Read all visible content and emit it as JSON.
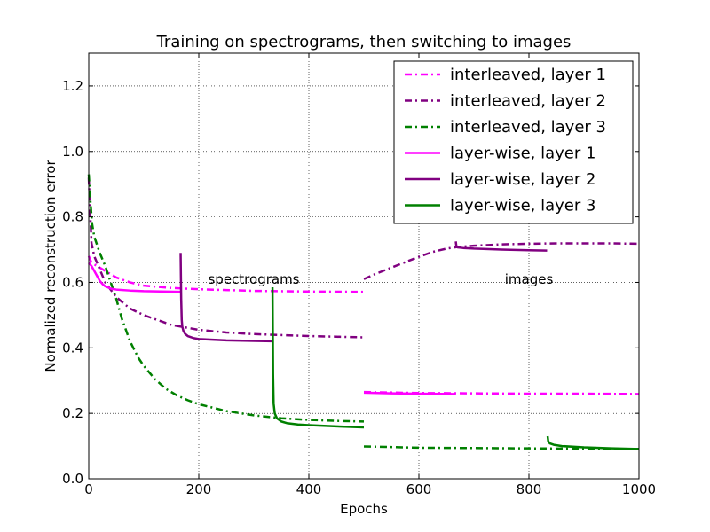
{
  "chart_data": {
    "type": "line",
    "title": "Training  on spectrograms, then switching to images",
    "xlabel": "Epochs",
    "ylabel": "Normalized reconstruction error",
    "xlim": [
      0,
      1000
    ],
    "ylim": [
      0.0,
      1.3
    ],
    "xticks": [
      0,
      200,
      400,
      600,
      800,
      1000
    ],
    "xtick_labels": [
      "0",
      "200",
      "400",
      "600",
      "800",
      "1000"
    ],
    "yticks": [
      0.0,
      0.2,
      0.4,
      0.6,
      0.8,
      1.0,
      1.2
    ],
    "ytick_labels": [
      "0.0",
      "0.2",
      "0.4",
      "0.6",
      "0.8",
      "1.0",
      "1.2"
    ],
    "grid": true,
    "legend_position": "top-right",
    "annotations": [
      {
        "text": "spectrograms",
        "x": 300,
        "y": 0.61
      },
      {
        "text": "images",
        "x": 800,
        "y": 0.61
      }
    ],
    "series": [
      {
        "name": "interleaved, layer 1",
        "color": "#ff00ff",
        "style": "dashdot",
        "segments": [
          [
            [
              0,
              0.68
            ],
            [
              5,
              0.66
            ],
            [
              10,
              0.655
            ],
            [
              20,
              0.645
            ],
            [
              30,
              0.635
            ],
            [
              50,
              0.615
            ],
            [
              75,
              0.6
            ],
            [
              100,
              0.59
            ],
            [
              150,
              0.583
            ],
            [
              200,
              0.579
            ],
            [
              300,
              0.574
            ],
            [
              400,
              0.572
            ],
            [
              500,
              0.571
            ]
          ],
          [
            [
              500,
              0.265
            ],
            [
              600,
              0.262
            ],
            [
              700,
              0.261
            ],
            [
              800,
              0.26
            ],
            [
              900,
              0.26
            ],
            [
              1000,
              0.259
            ]
          ]
        ]
      },
      {
        "name": "interleaved, layer 2",
        "color": "#800080",
        "style": "dashdot",
        "segments": [
          [
            [
              0,
              0.92
            ],
            [
              5,
              0.72
            ],
            [
              10,
              0.68
            ],
            [
              20,
              0.64
            ],
            [
              30,
              0.6
            ],
            [
              50,
              0.555
            ],
            [
              75,
              0.52
            ],
            [
              100,
              0.5
            ],
            [
              150,
              0.47
            ],
            [
              200,
              0.455
            ],
            [
              250,
              0.447
            ],
            [
              300,
              0.442
            ],
            [
              350,
              0.439
            ],
            [
              400,
              0.436
            ],
            [
              450,
              0.434
            ],
            [
              500,
              0.432
            ]
          ],
          [
            [
              500,
              0.61
            ],
            [
              520,
              0.625
            ],
            [
              550,
              0.645
            ],
            [
              580,
              0.665
            ],
            [
              600,
              0.678
            ],
            [
              625,
              0.693
            ],
            [
              650,
              0.703
            ],
            [
              670,
              0.708
            ],
            [
              700,
              0.712
            ],
            [
              750,
              0.716
            ],
            [
              800,
              0.718
            ],
            [
              850,
              0.719
            ],
            [
              900,
              0.719
            ],
            [
              950,
              0.719
            ],
            [
              1000,
              0.718
            ]
          ]
        ]
      },
      {
        "name": "interleaved, layer 3",
        "color": "#008000",
        "style": "dashdot",
        "segments": [
          [
            [
              0,
              0.93
            ],
            [
              3,
              0.85
            ],
            [
              6,
              0.78
            ],
            [
              10,
              0.74
            ],
            [
              20,
              0.69
            ],
            [
              30,
              0.65
            ],
            [
              40,
              0.6
            ],
            [
              50,
              0.55
            ],
            [
              60,
              0.49
            ],
            [
              75,
              0.42
            ],
            [
              90,
              0.37
            ],
            [
              100,
              0.345
            ],
            [
              120,
              0.305
            ],
            [
              140,
              0.275
            ],
            [
              160,
              0.255
            ],
            [
              180,
              0.24
            ],
            [
              200,
              0.228
            ],
            [
              250,
              0.207
            ],
            [
              300,
              0.194
            ],
            [
              350,
              0.185
            ],
            [
              400,
              0.18
            ],
            [
              450,
              0.177
            ],
            [
              500,
              0.175
            ]
          ],
          [
            [
              500,
              0.099
            ],
            [
              550,
              0.097
            ],
            [
              600,
              0.095
            ],
            [
              700,
              0.094
            ],
            [
              800,
              0.093
            ],
            [
              900,
              0.092
            ],
            [
              1000,
              0.091
            ]
          ]
        ]
      },
      {
        "name": "layer-wise, layer 1",
        "color": "#ff00ff",
        "style": "solid",
        "segments": [
          [
            [
              0,
              0.66
            ],
            [
              5,
              0.65
            ],
            [
              10,
              0.635
            ],
            [
              15,
              0.62
            ],
            [
              20,
              0.605
            ],
            [
              25,
              0.595
            ],
            [
              30,
              0.588
            ],
            [
              40,
              0.581
            ],
            [
              50,
              0.578
            ],
            [
              75,
              0.575
            ],
            [
              100,
              0.573
            ],
            [
              130,
              0.572
            ],
            [
              167,
              0.571
            ]
          ],
          [
            [
              500,
              0.263
            ],
            [
              550,
              0.261
            ],
            [
              600,
              0.26
            ],
            [
              667,
              0.259
            ]
          ]
        ]
      },
      {
        "name": "layer-wise, layer 2",
        "color": "#800080",
        "style": "solid",
        "segments": [
          [
            [
              167,
              0.69
            ],
            [
              168,
              0.55
            ],
            [
              169,
              0.485
            ],
            [
              170,
              0.465
            ],
            [
              172,
              0.452
            ],
            [
              175,
              0.443
            ],
            [
              180,
              0.436
            ],
            [
              190,
              0.43
            ],
            [
              200,
              0.427
            ],
            [
              250,
              0.423
            ],
            [
              300,
              0.421
            ],
            [
              333,
              0.42
            ]
          ],
          [
            [
              667,
              0.725
            ],
            [
              668,
              0.712
            ],
            [
              670,
              0.707
            ],
            [
              680,
              0.705
            ],
            [
              700,
              0.703
            ],
            [
              750,
              0.7
            ],
            [
              800,
              0.698
            ],
            [
              833,
              0.697
            ]
          ]
        ]
      },
      {
        "name": "layer-wise, layer 3",
        "color": "#008000",
        "style": "solid",
        "segments": [
          [
            [
              334,
              0.585
            ],
            [
              335,
              0.32
            ],
            [
              336,
              0.23
            ],
            [
              338,
              0.2
            ],
            [
              342,
              0.185
            ],
            [
              350,
              0.175
            ],
            [
              360,
              0.17
            ],
            [
              380,
              0.166
            ],
            [
              400,
              0.164
            ],
            [
              450,
              0.16
            ],
            [
              500,
              0.157
            ]
          ],
          [
            [
              834,
              0.13
            ],
            [
              835,
              0.115
            ],
            [
              838,
              0.108
            ],
            [
              845,
              0.104
            ],
            [
              860,
              0.1
            ],
            [
              900,
              0.096
            ],
            [
              950,
              0.093
            ],
            [
              1000,
              0.091
            ]
          ]
        ]
      }
    ]
  }
}
